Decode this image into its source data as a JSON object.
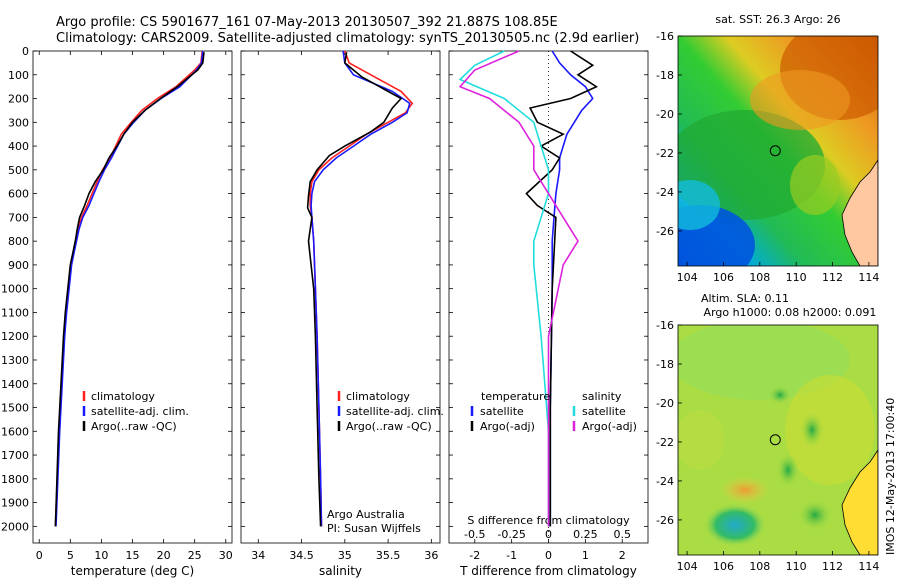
{
  "header": {
    "line1": "Argo profile: CS 5901677_161 07-May-2013 20130507_392 21.887S 108.85E",
    "line2": "Climatology: CARS2009. Satellite-adjusted climatology: synTS_20130505.nc (2.9d earlier)"
  },
  "watermark": "IMOS 12-May-2013 17:00:40",
  "colors": {
    "climatology": "#ff2020",
    "satellite": "#1a1aff",
    "argo": "#000000",
    "sal_satellite": "#22dddd",
    "sal_argo": "#dd22dd"
  },
  "chart_data": [
    {
      "id": "temperature",
      "type": "line",
      "xlabel": "temperature (deg C)",
      "ylabel": "",
      "xlim": [
        -1,
        31
      ],
      "ylim": [
        2070,
        0
      ],
      "xticks": [
        0,
        5,
        10,
        15,
        20,
        25,
        30
      ],
      "yticks": [
        0,
        100,
        200,
        300,
        400,
        500,
        600,
        700,
        800,
        900,
        1000,
        1100,
        1200,
        1300,
        1400,
        1500,
        1600,
        1700,
        1800,
        1900,
        2000
      ],
      "legend": [
        "climatology",
        "satellite-adj. clim.",
        "Argo(..raw -QC)"
      ],
      "series": [
        {
          "name": "climatology",
          "color": "#ff2020",
          "x": [
            26.2,
            26.0,
            25.0,
            22.0,
            19.0,
            16.5,
            14.8,
            13.2,
            12.3,
            11.4,
            10.2,
            9.3,
            8.5,
            7.7,
            6.8,
            6.2,
            5.9,
            5.5,
            5.1,
            4.7,
            4.3,
            4.0,
            3.6,
            3.2,
            2.6
          ],
          "y": [
            0,
            50,
            80,
            150,
            200,
            250,
            300,
            350,
            400,
            450,
            500,
            550,
            600,
            650,
            700,
            750,
            800,
            850,
            900,
            1000,
            1100,
            1200,
            1400,
            1600,
            2000
          ]
        },
        {
          "name": "satellite-adj. clim.",
          "color": "#1a1aff",
          "x": [
            26.3,
            26.1,
            25.3,
            22.6,
            19.6,
            17.0,
            15.2,
            13.6,
            12.6,
            11.6,
            10.5,
            9.6,
            8.8,
            8.0,
            7.0,
            6.4,
            6.0,
            5.6,
            5.2,
            4.8,
            4.4,
            4.1,
            3.7,
            3.3,
            2.7
          ],
          "y": [
            0,
            50,
            80,
            150,
            200,
            250,
            300,
            350,
            400,
            450,
            500,
            550,
            600,
            650,
            700,
            750,
            800,
            850,
            900,
            1000,
            1100,
            1200,
            1400,
            1600,
            2000
          ]
        },
        {
          "name": "Argo(..raw -QC)",
          "color": "#000000",
          "x": [
            26.5,
            26.3,
            25.5,
            22.2,
            19.5,
            17.0,
            15.0,
            13.6,
            12.5,
            11.2,
            10.3,
            9.0,
            8.0,
            7.3,
            6.5,
            6.1,
            5.8,
            5.4,
            5.0,
            4.6,
            4.2,
            3.9,
            3.5,
            3.1,
            2.6
          ],
          "y": [
            5,
            50,
            80,
            150,
            200,
            250,
            300,
            350,
            400,
            450,
            500,
            550,
            600,
            650,
            700,
            750,
            800,
            850,
            900,
            1000,
            1100,
            1200,
            1400,
            1600,
            2000
          ]
        }
      ]
    },
    {
      "id": "salinity",
      "type": "line",
      "xlabel": "salinity",
      "ylabel": "",
      "xlim": [
        33.8,
        36.1
      ],
      "ylim": [
        2070,
        0
      ],
      "xticks": [
        34,
        34.5,
        35,
        35.5,
        36
      ],
      "legend": [
        "climatology",
        "satellite-adj. clim.",
        "Argo(..raw -QC)"
      ],
      "annotation": [
        "Argo Australia",
        "PI: Susan Wijffels"
      ],
      "series": [
        {
          "name": "climatology",
          "color": "#ff2020",
          "x": [
            35.0,
            35.05,
            35.3,
            35.65,
            35.78,
            35.7,
            35.5,
            35.25,
            35.05,
            34.85,
            34.7,
            34.62,
            34.6,
            34.6,
            34.62,
            34.64,
            34.66,
            34.68,
            34.7,
            34.72,
            34.73
          ],
          "y": [
            0,
            50,
            100,
            170,
            220,
            260,
            300,
            350,
            400,
            450,
            500,
            550,
            600,
            650,
            700,
            800,
            1000,
            1200,
            1500,
            1800,
            2000
          ]
        },
        {
          "name": "satellite-adj. clim.",
          "color": "#1a1aff",
          "x": [
            34.98,
            35.0,
            35.1,
            35.55,
            35.75,
            35.72,
            35.55,
            35.3,
            35.1,
            34.9,
            34.75,
            34.65,
            34.62,
            34.61,
            34.62,
            34.64,
            34.66,
            34.68,
            34.7,
            34.72,
            34.73
          ],
          "y": [
            0,
            50,
            100,
            170,
            220,
            260,
            300,
            350,
            400,
            450,
            500,
            550,
            600,
            650,
            700,
            800,
            1000,
            1200,
            1500,
            1800,
            2000
          ]
        },
        {
          "name": "Argo(..raw -QC)",
          "color": "#000000",
          "x": [
            35.02,
            35.0,
            35.2,
            35.45,
            35.65,
            35.55,
            35.45,
            35.3,
            35.0,
            34.82,
            34.68,
            34.6,
            34.58,
            34.57,
            34.62,
            34.58,
            34.64,
            34.66,
            34.68,
            34.7,
            34.72
          ],
          "y": [
            5,
            50,
            110,
            160,
            200,
            240,
            300,
            340,
            400,
            440,
            500,
            550,
            610,
            660,
            700,
            800,
            1000,
            1200,
            1500,
            1800,
            2000
          ]
        }
      ]
    },
    {
      "id": "difference",
      "type": "line",
      "xlabel": "T difference from climatology",
      "xlabel_top": "S difference from climatology",
      "xlim": [
        -2.7,
        2.7
      ],
      "ylim": [
        2070,
        0
      ],
      "xticks": [
        -2,
        -1,
        0,
        1,
        2
      ],
      "xtick_labels": [
        "-2",
        "-1",
        "0",
        "1",
        "2"
      ],
      "s_ticks": [
        -0.5,
        -0.25,
        0,
        0.25,
        0.5
      ],
      "s_tick_labels": [
        "-0.5",
        "-0.25",
        "0",
        "0.25",
        "0.5"
      ],
      "legend_temperature_title": "temperature",
      "legend_salinity_title": "salinity",
      "legend": [
        "satellite",
        "Argo(-adj)",
        "satellite",
        "Argo(-adj)"
      ],
      "series": [
        {
          "name": "T satellite",
          "color": "#1a1aff",
          "x": [
            0.1,
            0.3,
            0.6,
            1.0,
            1.2,
            0.9,
            0.7,
            0.5,
            0.4,
            0.3,
            0.3,
            0.2,
            0.15,
            0.1,
            0.1,
            0.05,
            0.05
          ],
          "y": [
            0,
            50,
            100,
            150,
            200,
            250,
            300,
            350,
            400,
            450,
            500,
            600,
            700,
            800,
            1000,
            1500,
            2000
          ]
        },
        {
          "name": "T Argo(-adj)",
          "color": "#000000",
          "x": [
            0.6,
            1.2,
            0.8,
            1.3,
            0.6,
            -0.5,
            -0.3,
            0.4,
            -0.2,
            0.3,
            0.1,
            -0.6,
            -0.3,
            0.2,
            0.1,
            0.05,
            0.05
          ],
          "y": [
            0,
            60,
            100,
            150,
            200,
            240,
            300,
            350,
            400,
            450,
            500,
            600,
            650,
            700,
            1000,
            1500,
            2000
          ]
        },
        {
          "name": "S satellite",
          "color": "#22dddd",
          "x": [
            -0.3,
            -0.5,
            -0.6,
            -0.3,
            -0.1,
            -0.05,
            0.0,
            0.0,
            -0.05,
            -0.1,
            -0.1,
            -0.05,
            0.0,
            0.0
          ],
          "y": [
            0,
            60,
            120,
            200,
            300,
            400,
            500,
            600,
            700,
            800,
            900,
            1200,
            1600,
            2000
          ]
        },
        {
          "name": "S Argo(-adj)",
          "color": "#dd22dd",
          "x": [
            -0.2,
            -0.5,
            -0.6,
            -0.4,
            -0.2,
            -0.1,
            -0.1,
            0.0,
            0.1,
            0.2,
            0.1,
            0.0,
            0.0,
            0.0
          ],
          "y": [
            0,
            80,
            150,
            200,
            300,
            400,
            500,
            600,
            700,
            800,
            900,
            1200,
            1600,
            2000
          ]
        }
      ]
    },
    {
      "id": "sst_map",
      "type": "heatmap",
      "title": "sat. SST: 26.3 Argo: 26",
      "xlim": [
        103.5,
        114.5
      ],
      "ylim": [
        -27.8,
        -16
      ],
      "xticks": [
        104,
        106,
        108,
        110,
        112,
        114
      ],
      "yticks": [
        -16,
        -18,
        -20,
        -22,
        -24,
        -26
      ],
      "argo_position": [
        108.85,
        -21.887
      ]
    },
    {
      "id": "sla_map",
      "type": "heatmap",
      "title": "Altim. SLA: 0.11",
      "subtitle": "Argo h1000: 0.08 h2000: 0.091",
      "xlim": [
        103.5,
        114.5
      ],
      "ylim": [
        -27.8,
        -16
      ],
      "xticks": [
        104,
        106,
        108,
        110,
        112,
        114
      ],
      "yticks": [
        -16,
        -18,
        -20,
        -22,
        -24,
        -26
      ],
      "argo_position": [
        108.85,
        -21.887
      ]
    }
  ]
}
